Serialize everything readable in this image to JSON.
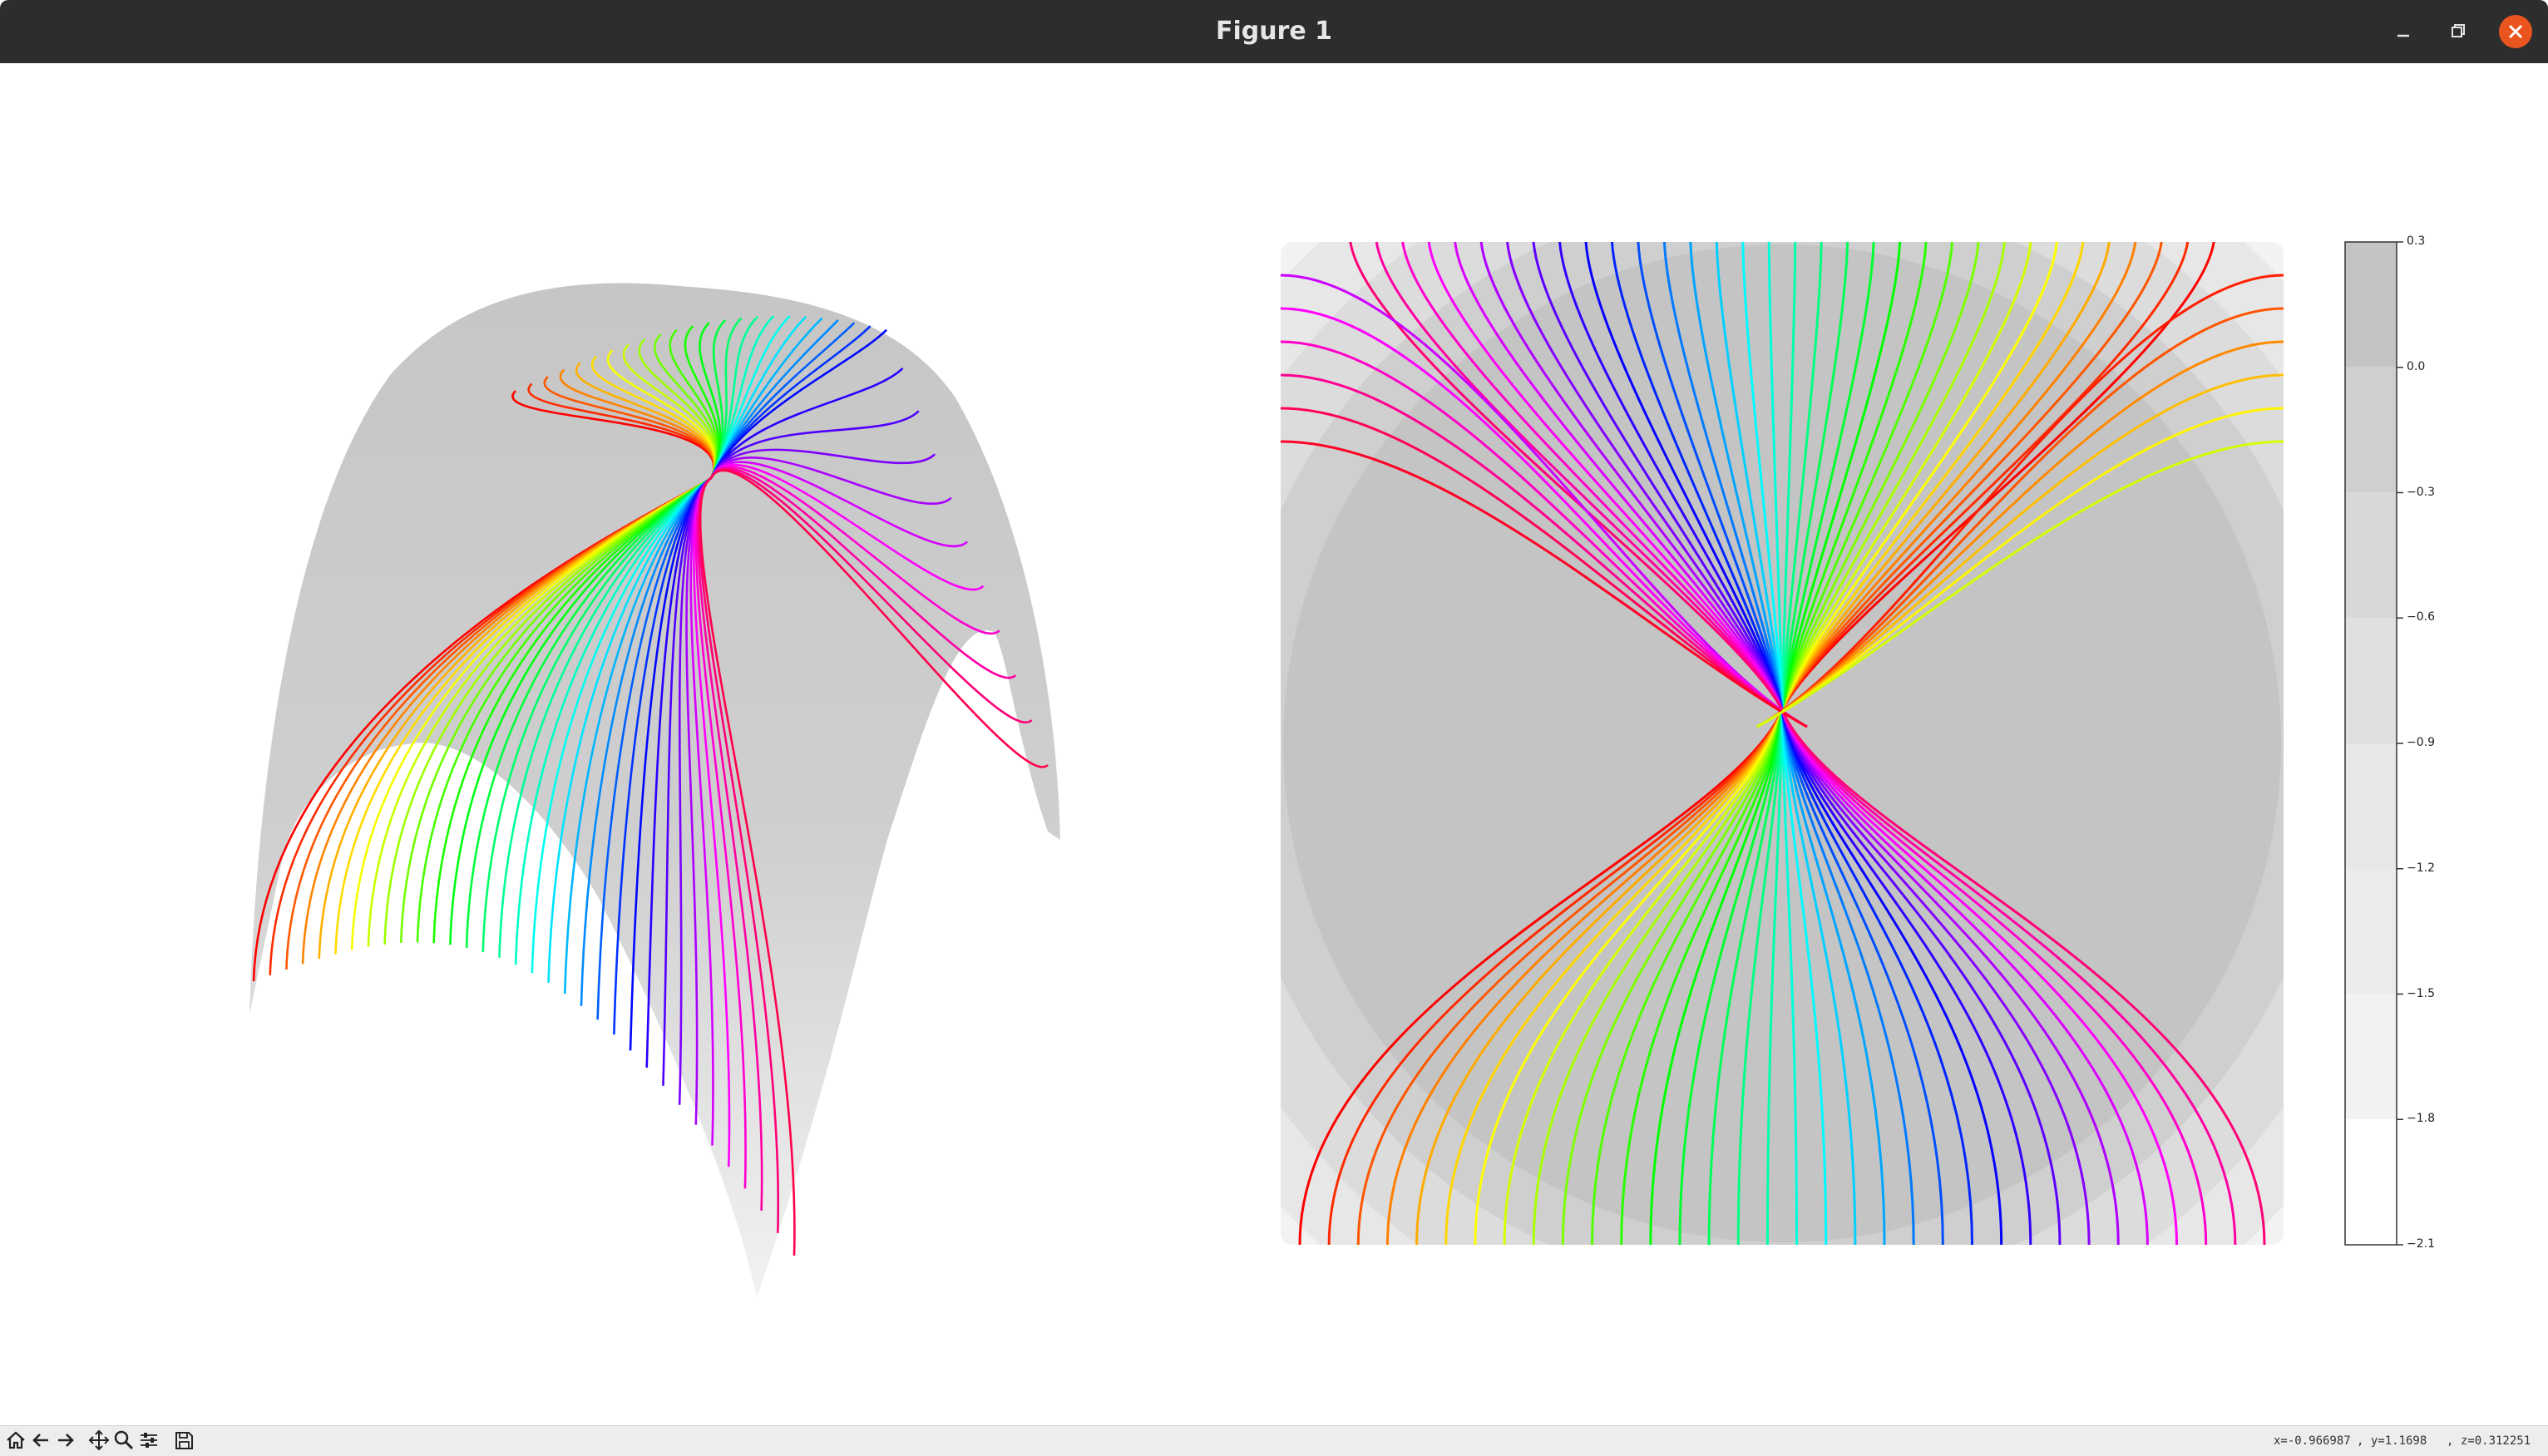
{
  "window": {
    "title": "Figure 1"
  },
  "toolbar": {
    "buttons": [
      {
        "name": "home-button",
        "icon": "home-icon"
      },
      {
        "name": "back-button",
        "icon": "arrow-left-icon"
      },
      {
        "name": "forward-button",
        "icon": "arrow-right-icon"
      },
      {
        "name": "pan-button",
        "icon": "move-icon"
      },
      {
        "name": "zoom-button",
        "icon": "magnifier-icon"
      },
      {
        "name": "configure-subplots-button",
        "icon": "sliders-icon"
      },
      {
        "name": "save-button",
        "icon": "floppy-disk-icon"
      }
    ]
  },
  "status": {
    "x": "x=-0.966987",
    "y": ", y=1.1698",
    "z": ", z=0.312251"
  },
  "colors": {
    "titlebar": "#2d2d2d",
    "close": "#e9541f",
    "surface": "#c4c4c4"
  },
  "chart_data": [
    {
      "type": "surface",
      "view": "3d",
      "note_colormap": "gray",
      "line_colormap": "hsv",
      "line_count": 34
    },
    {
      "type": "contour",
      "levels": [
        -2.1,
        -1.8,
        -1.5,
        -1.2,
        -0.9,
        -0.6,
        -0.3,
        0.0,
        0.3
      ],
      "xlim": [
        -1,
        1
      ],
      "ylim": [
        -1,
        1
      ],
      "line_count": 34,
      "colorbar": {
        "ticks": [
          "0.3",
          "0.0",
          "−0.3",
          "−0.6",
          "−0.9",
          "−1.2",
          "−1.5",
          "−1.8",
          "−2.1"
        ]
      }
    }
  ]
}
